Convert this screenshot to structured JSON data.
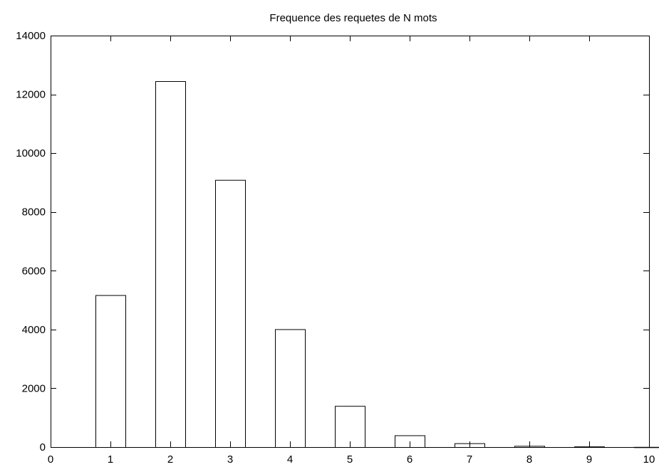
{
  "chart_data": {
    "type": "bar",
    "title": "Frequence des requetes de N mots",
    "xlabel": "",
    "ylabel": "",
    "x": [
      1,
      2,
      3,
      4,
      5,
      6,
      7,
      8,
      9,
      10
    ],
    "values": [
      5170,
      12450,
      9090,
      4010,
      1400,
      400,
      130,
      40,
      20,
      5
    ],
    "bar_width": 0.5,
    "xlim": [
      0,
      10
    ],
    "ylim": [
      0,
      14000
    ],
    "xticks": [
      0,
      1,
      2,
      3,
      4,
      5,
      6,
      7,
      8,
      9,
      10
    ],
    "yticks": [
      0,
      2000,
      4000,
      6000,
      8000,
      10000,
      12000,
      14000
    ],
    "grid": false,
    "legend": "none",
    "bar_fill": "#ffffff",
    "bar_stroke": "#000000"
  }
}
